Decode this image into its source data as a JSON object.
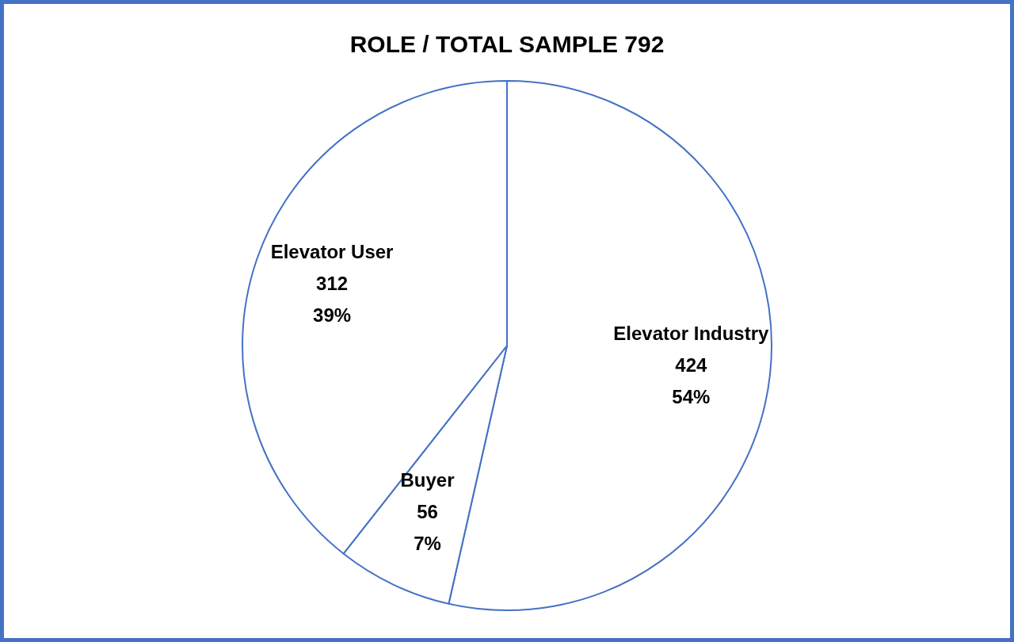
{
  "chart_data": {
    "type": "pie",
    "title": "ROLE / TOTAL SAMPLE 792",
    "categories": [
      "Elevator Industry",
      "Buyer",
      "Elevator User"
    ],
    "values": [
      424,
      56,
      312
    ],
    "colors": [
      "#ffffff",
      "#ffffff",
      "#ffffff"
    ],
    "value_labels": [
      "424\n54%",
      "56\n7%",
      "312\n39%"
    ],
    "legend": false
  }
}
